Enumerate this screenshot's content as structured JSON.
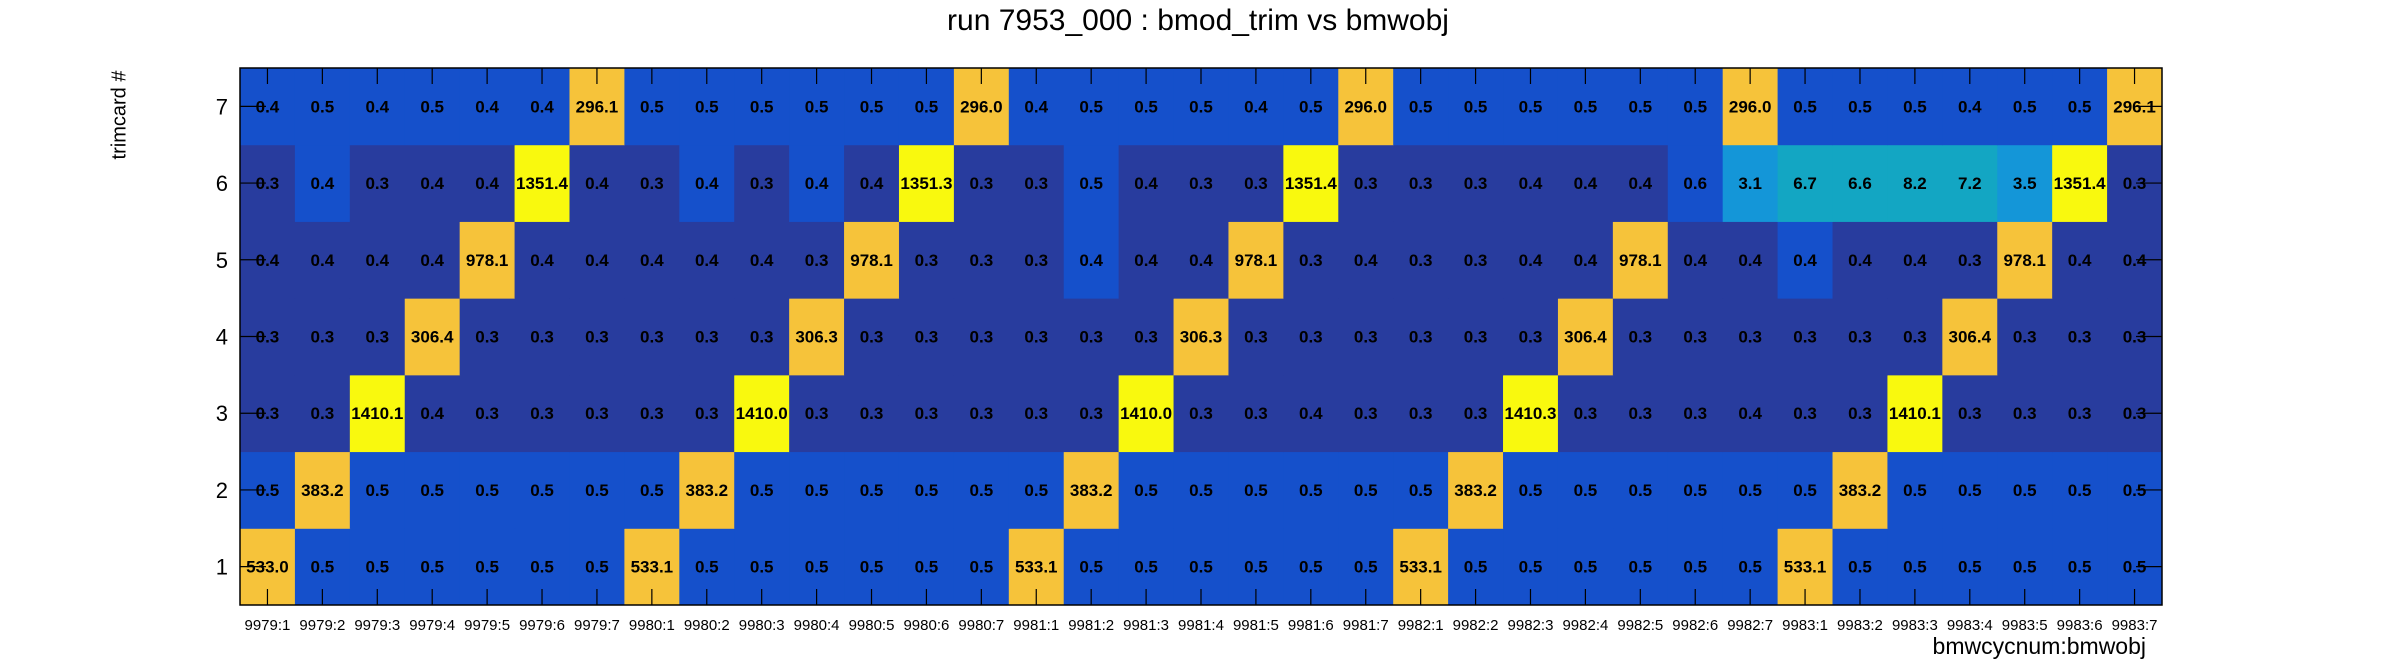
{
  "chart_data": {
    "type": "heatmap",
    "title": "run 7953_000 : bmod_trim vs bmwobj",
    "xlabel": "bmwcycnum:bmwobj",
    "ylabel": "trimcard #",
    "x_categories": [
      "9979:1",
      "9979:2",
      "9979:3",
      "9979:4",
      "9979:5",
      "9979:6",
      "9979:7",
      "9980:1",
      "9980:2",
      "9980:3",
      "9980:4",
      "9980:5",
      "9980:6",
      "9980:7",
      "9981:1",
      "9981:2",
      "9981:3",
      "9981:4",
      "9981:5",
      "9981:6",
      "9981:7",
      "9982:1",
      "9982:2",
      "9982:3",
      "9982:4",
      "9982:5",
      "9982:6",
      "9982:7",
      "9983:1",
      "9983:2",
      "9983:3",
      "9983:4",
      "9983:5",
      "9983:6",
      "9983:7"
    ],
    "y_categories": [
      "1",
      "2",
      "3",
      "4",
      "5",
      "6",
      "7"
    ],
    "values": [
      [
        "533.0",
        "0.5",
        "0.5",
        "0.5",
        "0.5",
        "0.5",
        "0.5",
        "533.1",
        "0.5",
        "0.5",
        "0.5",
        "0.5",
        "0.5",
        "0.5",
        "533.1",
        "0.5",
        "0.5",
        "0.5",
        "0.5",
        "0.5",
        "0.5",
        "533.1",
        "0.5",
        "0.5",
        "0.5",
        "0.5",
        "0.5",
        "0.5",
        "533.1",
        "0.5",
        "0.5",
        "0.5",
        "0.5",
        "0.5",
        "0.5"
      ],
      [
        "0.5",
        "383.2",
        "0.5",
        "0.5",
        "0.5",
        "0.5",
        "0.5",
        "0.5",
        "383.2",
        "0.5",
        "0.5",
        "0.5",
        "0.5",
        "0.5",
        "0.5",
        "383.2",
        "0.5",
        "0.5",
        "0.5",
        "0.5",
        "0.5",
        "0.5",
        "383.2",
        "0.5",
        "0.5",
        "0.5",
        "0.5",
        "0.5",
        "0.5",
        "383.2",
        "0.5",
        "0.5",
        "0.5",
        "0.5",
        "0.5"
      ],
      [
        "0.3",
        "0.3",
        "1410.1",
        "0.4",
        "0.3",
        "0.3",
        "0.3",
        "0.3",
        "0.3",
        "1410.0",
        "0.3",
        "0.3",
        "0.3",
        "0.3",
        "0.3",
        "0.3",
        "1410.0",
        "0.3",
        "0.3",
        "0.4",
        "0.3",
        "0.3",
        "0.3",
        "1410.3",
        "0.3",
        "0.3",
        "0.3",
        "0.4",
        "0.3",
        "0.3",
        "1410.1",
        "0.3",
        "0.3",
        "0.3",
        "0.3"
      ],
      [
        "0.3",
        "0.3",
        "0.3",
        "306.4",
        "0.3",
        "0.3",
        "0.3",
        "0.3",
        "0.3",
        "0.3",
        "306.3",
        "0.3",
        "0.3",
        "0.3",
        "0.3",
        "0.3",
        "0.3",
        "306.3",
        "0.3",
        "0.3",
        "0.3",
        "0.3",
        "0.3",
        "0.3",
        "306.4",
        "0.3",
        "0.3",
        "0.3",
        "0.3",
        "0.3",
        "0.3",
        "306.4",
        "0.3",
        "0.3",
        "0.3"
      ],
      [
        "0.4",
        "0.4",
        "0.4",
        "0.4",
        "978.1",
        "0.4",
        "0.4",
        "0.4",
        "0.4",
        "0.4",
        "0.3",
        "978.1",
        "0.3",
        "0.3",
        "0.3",
        "0.4",
        "0.4",
        "0.4",
        "978.1",
        "0.3",
        "0.4",
        "0.3",
        "0.3",
        "0.4",
        "0.4",
        "978.1",
        "0.4",
        "0.4",
        "0.4",
        "0.4",
        "0.4",
        "0.3",
        "978.1",
        "0.4",
        "0.4"
      ],
      [
        "0.3",
        "0.4",
        "0.3",
        "0.4",
        "0.4",
        "1351.4",
        "0.4",
        "0.3",
        "0.4",
        "0.3",
        "0.4",
        "0.4",
        "1351.3",
        "0.3",
        "0.3",
        "0.5",
        "0.4",
        "0.3",
        "0.3",
        "1351.4",
        "0.3",
        "0.3",
        "0.3",
        "0.4",
        "0.4",
        "0.4",
        "0.6",
        "3.1",
        "6.7",
        "6.6",
        "8.2",
        "7.2",
        "3.5",
        "1351.4",
        "0.3"
      ],
      [
        "0.4",
        "0.5",
        "0.4",
        "0.5",
        "0.4",
        "0.4",
        "296.1",
        "0.5",
        "0.5",
        "0.5",
        "0.5",
        "0.5",
        "0.5",
        "296.0",
        "0.4",
        "0.5",
        "0.5",
        "0.5",
        "0.4",
        "0.5",
        "296.0",
        "0.5",
        "0.5",
        "0.5",
        "0.5",
        "0.5",
        "0.5",
        "296.0",
        "0.5",
        "0.5",
        "0.5",
        "0.4",
        "0.5",
        "0.5",
        "296.1"
      ]
    ]
  }
}
